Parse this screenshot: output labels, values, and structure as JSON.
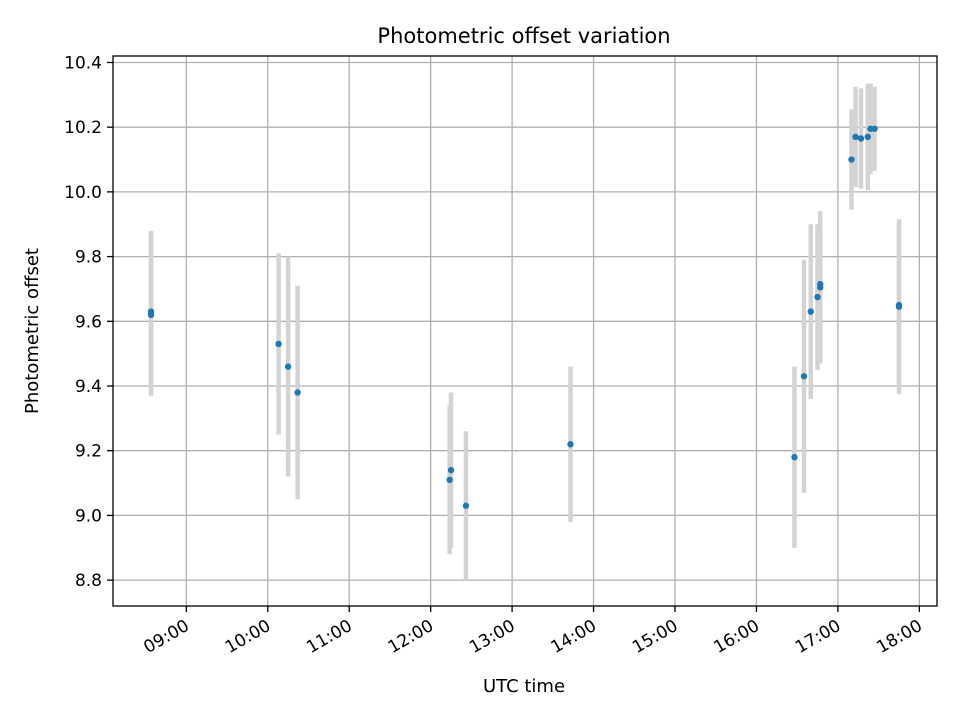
{
  "chart_data": {
    "type": "scatter",
    "title": "Photometric offset variation",
    "xlabel": "UTC time",
    "ylabel": "Photometric offset",
    "x_ticks": [
      "09:00",
      "10:00",
      "11:00",
      "12:00",
      "13:00",
      "14:00",
      "15:00",
      "16:00",
      "17:00",
      "18:00"
    ],
    "y_ticks": [
      "8.8",
      "9.0",
      "9.2",
      "9.4",
      "9.6",
      "9.8",
      "10.0",
      "10.2",
      "10.4"
    ],
    "xlim": [
      "08:06",
      "18:13"
    ],
    "ylim": [
      8.72,
      10.42
    ],
    "grid": true,
    "colors": {
      "points": "#1f77b4",
      "errorbars": "#d3d3d3",
      "grid": "#b0b0b0"
    },
    "series": [
      {
        "points": [
          {
            "x": "08:34",
            "y": 9.62,
            "err": 0.25
          },
          {
            "x": "08:34",
            "y": 9.63,
            "err": 0.25
          },
          {
            "x": "10:08",
            "y": 9.53,
            "err": 0.28
          },
          {
            "x": "10:15",
            "y": 9.46,
            "err": 0.34
          },
          {
            "x": "10:22",
            "y": 9.38,
            "err": 0.33
          },
          {
            "x": "12:14",
            "y": 9.11,
            "err": 0.23
          },
          {
            "x": "12:15",
            "y": 9.14,
            "err": 0.24
          },
          {
            "x": "12:26",
            "y": 9.03,
            "err": 0.23
          },
          {
            "x": "13:43",
            "y": 9.22,
            "err": 0.24
          },
          {
            "x": "16:28",
            "y": 9.18,
            "err": 0.28
          },
          {
            "x": "16:35",
            "y": 9.43,
            "err": 0.36
          },
          {
            "x": "16:40",
            "y": 9.63,
            "err": 0.27
          },
          {
            "x": "16:45",
            "y": 9.675,
            "err": 0.225
          },
          {
            "x": "16:47",
            "y": 9.705,
            "err": 0.235
          },
          {
            "x": "16:47",
            "y": 9.715,
            "err": 0.225
          },
          {
            "x": "17:10",
            "y": 10.1,
            "err": 0.155
          },
          {
            "x": "17:13",
            "y": 10.17,
            "err": 0.155
          },
          {
            "x": "17:17",
            "y": 10.165,
            "err": 0.155
          },
          {
            "x": "17:22",
            "y": 10.17,
            "err": 0.165
          },
          {
            "x": "17:24",
            "y": 10.195,
            "err": 0.14
          },
          {
            "x": "17:27",
            "y": 10.195,
            "err": 0.13
          },
          {
            "x": "17:45",
            "y": 9.645,
            "err": 0.27
          },
          {
            "x": "17:45",
            "y": 9.65,
            "err": 0.25
          }
        ]
      }
    ]
  }
}
